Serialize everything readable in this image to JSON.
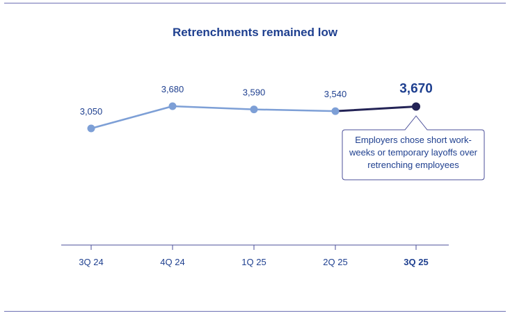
{
  "title": "Retrenchments remained low",
  "chart_data": {
    "type": "line",
    "title": "Retrenchments remained low",
    "categories": [
      "3Q 24",
      "4Q 24",
      "1Q 25",
      "2Q 25",
      "3Q 25"
    ],
    "series": [
      {
        "values": [
          3050,
          3680,
          3590,
          3540,
          3670
        ]
      }
    ],
    "data_labels": [
      "3,050",
      "3,680",
      "3,590",
      "3,540",
      "3,670"
    ],
    "highlight_index": 4,
    "annotation": "Employers chose short work-weeks or temporary layoffs over retrenching employees",
    "colors": {
      "line": "#7d9fd6",
      "highlight": "#232356",
      "text": "#1e3f8f",
      "callout_border": "#4b4f99"
    },
    "grid": false,
    "legend": "none"
  }
}
